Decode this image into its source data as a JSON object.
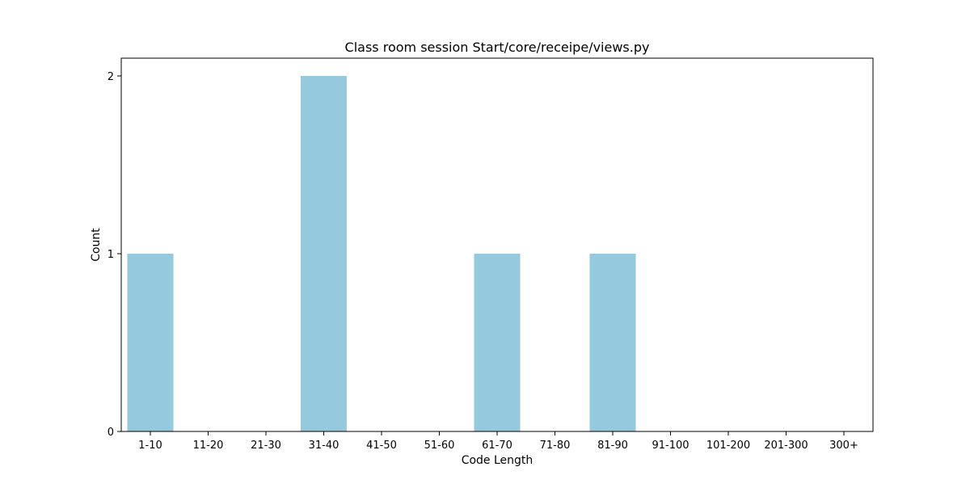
{
  "chart_data": {
    "type": "bar",
    "title": "Class room session Start/core/receipe/views.py",
    "xlabel": "Code Length",
    "ylabel": "Count",
    "categories": [
      "1-10",
      "11-20",
      "21-30",
      "31-40",
      "41-50",
      "51-60",
      "61-70",
      "71-80",
      "81-90",
      "91-100",
      "101-200",
      "201-300",
      "300+"
    ],
    "values": [
      1,
      0,
      0,
      2,
      0,
      0,
      1,
      0,
      1,
      0,
      0,
      0,
      0
    ],
    "ylim": [
      0,
      2.1
    ],
    "yticks": [
      0,
      1,
      2
    ],
    "grid": false,
    "bar_color": "#95c9de"
  }
}
